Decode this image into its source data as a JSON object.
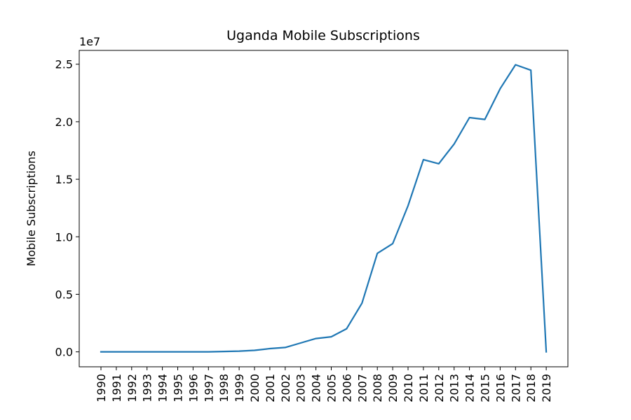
{
  "chart_data": {
    "type": "line",
    "title": "Uganda Mobile Subscriptions",
    "xlabel": "",
    "ylabel": "Mobile Subscriptions",
    "offset_label": "1e7",
    "x": [
      "1990",
      "1991",
      "1992",
      "1993",
      "1994",
      "1995",
      "1996",
      "1997",
      "1998",
      "1999",
      "2000",
      "2001",
      "2002",
      "2003",
      "2004",
      "2005",
      "2006",
      "2007",
      "2008",
      "2009",
      "2010",
      "2011",
      "2012",
      "2013",
      "2014",
      "2015",
      "2016",
      "2017",
      "2018",
      "2019"
    ],
    "y_ticks": [
      "0.0",
      "0.5",
      "1.0",
      "1.5",
      "2.0",
      "2.5"
    ],
    "y_tick_values": [
      0.0,
      0.5,
      1.0,
      1.5,
      2.0,
      2.5
    ],
    "ylim": [
      -0.13,
      2.62
    ],
    "series": [
      {
        "color": "#1f77b4",
        "values": [
          0.0,
          0.0,
          0.0,
          0.0,
          0.0,
          0.0,
          0.0,
          0.0,
          0.003,
          0.006,
          0.013,
          0.028,
          0.038,
          0.077,
          0.116,
          0.131,
          0.201,
          0.423,
          0.856,
          0.94,
          1.27,
          1.67,
          1.635,
          1.806,
          2.036,
          2.02,
          2.287,
          2.495,
          2.448,
          0.0
        ]
      }
    ]
  }
}
